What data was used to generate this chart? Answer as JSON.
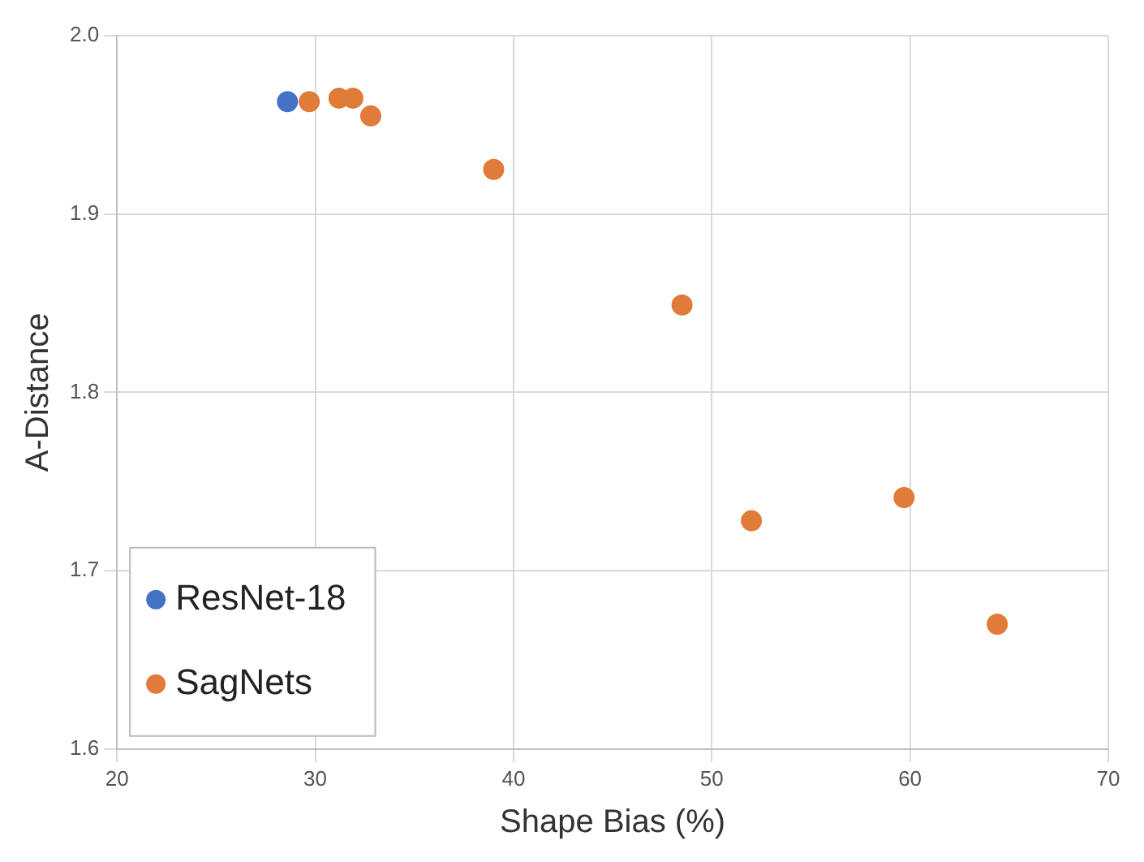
{
  "chart_data": {
    "type": "scatter",
    "xlabel": "Shape Bias (%)",
    "ylabel": "A-Distance",
    "xlim": [
      20,
      70
    ],
    "xticks": [
      20,
      30,
      40,
      50,
      60,
      70
    ],
    "ylim": [
      1.6,
      2.0
    ],
    "yticks": [
      {
        "value": 1.6,
        "label": "1.6"
      },
      {
        "value": 1.7,
        "label": "1.7"
      },
      {
        "value": 1.8,
        "label": "1.8"
      },
      {
        "value": 1.9,
        "label": "1.9"
      },
      {
        "value": 2.0,
        "label": "2.0"
      }
    ],
    "grid": true,
    "legend": "bottom left",
    "marker": "circle",
    "series": [
      {
        "name": "ResNet-18",
        "color": "#4472c4",
        "x": [
          28.6
        ],
        "values": [
          1.963
        ]
      },
      {
        "name": "SagNets",
        "color": "#e07b39",
        "x": [
          29.7,
          31.2,
          31.9,
          32.8,
          39.0,
          48.5,
          52.0,
          59.7,
          64.4
        ],
        "values": [
          1.963,
          1.965,
          1.965,
          1.955,
          1.925,
          1.849,
          1.728,
          1.741,
          1.67
        ]
      }
    ]
  }
}
